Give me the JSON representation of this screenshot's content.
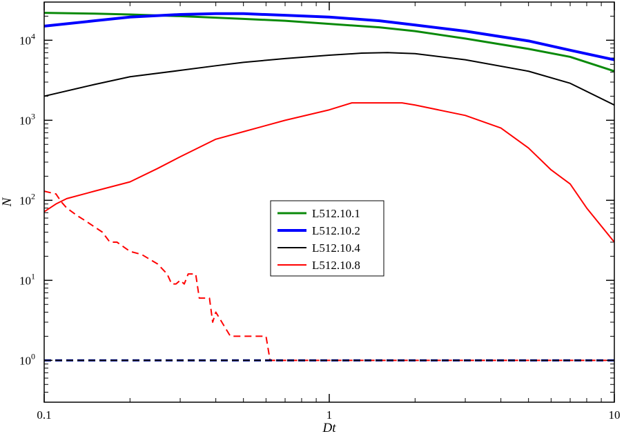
{
  "chart_data": {
    "type": "line",
    "xlabel": "Dt",
    "ylabel": "N",
    "xscale": "log",
    "yscale": "log",
    "xlim": [
      0.1,
      10
    ],
    "ylim": [
      0.3,
      30000
    ],
    "grid": false,
    "legend_position": "center",
    "x_tick_labels": [
      "0.1",
      "1",
      "10"
    ],
    "y_tick_labels": [
      {
        "base": "10",
        "exp": "0",
        "value": 1
      },
      {
        "base": "10",
        "exp": "1",
        "value": 10
      },
      {
        "base": "10",
        "exp": "2",
        "value": 100
      },
      {
        "base": "10",
        "exp": "3",
        "value": 1000
      },
      {
        "base": "10",
        "exp": "4",
        "value": 10000
      }
    ],
    "series": [
      {
        "name": "L512.10.1",
        "color": "#0a8a0a",
        "width": 3,
        "style": "solid",
        "x": [
          0.1,
          0.15,
          0.2,
          0.3,
          0.5,
          0.7,
          1.0,
          1.5,
          2.0,
          3.0,
          5.0,
          7.0,
          10.0
        ],
        "y": [
          22000,
          21500,
          21000,
          20000,
          18500,
          17500,
          16000,
          14500,
          13000,
          10500,
          7800,
          6200,
          4100
        ]
      },
      {
        "name": "L512.10.2",
        "color": "#0000ff",
        "width": 4,
        "style": "solid",
        "x": [
          0.1,
          0.15,
          0.2,
          0.3,
          0.4,
          0.5,
          0.7,
          1.0,
          1.5,
          2.0,
          3.0,
          5.0,
          7.0,
          10.0
        ],
        "y": [
          15000,
          17500,
          19500,
          21000,
          21500,
          21500,
          20500,
          19500,
          17500,
          15500,
          13000,
          9800,
          7500,
          5700
        ]
      },
      {
        "name": "L512.10.4",
        "color": "#000000",
        "width": 2,
        "style": "solid",
        "x": [
          0.1,
          0.15,
          0.2,
          0.3,
          0.4,
          0.5,
          0.7,
          1.0,
          1.3,
          1.6,
          2.0,
          3.0,
          5.0,
          7.0,
          10.0
        ],
        "y": [
          2000,
          2800,
          3500,
          4200,
          4800,
          5300,
          5900,
          6500,
          6900,
          7000,
          6800,
          5700,
          4100,
          2900,
          1550
        ]
      },
      {
        "name": "L512.10.8",
        "color": "#ff0000",
        "width": 2,
        "style": "solid",
        "x": [
          0.1,
          0.11,
          0.12,
          0.15,
          0.2,
          0.25,
          0.3,
          0.4,
          0.5,
          0.7,
          1.0,
          1.2,
          1.5,
          1.8,
          2.0,
          3.0,
          4.0,
          5.0,
          6.0,
          7.0,
          8.0,
          10.0
        ],
        "y": [
          72,
          90,
          105,
          130,
          170,
          250,
          350,
          580,
          720,
          1000,
          1350,
          1650,
          1650,
          1650,
          1550,
          1150,
          800,
          450,
          240,
          160,
          80,
          30
        ]
      },
      {
        "name": "",
        "color": "#ff0000",
        "width": 2,
        "style": "dashed",
        "x": [
          0.1,
          0.11,
          0.115,
          0.12,
          0.13,
          0.14,
          0.16,
          0.17,
          0.18,
          0.2,
          0.22,
          0.25,
          0.27,
          0.28,
          0.29,
          0.3,
          0.31,
          0.32,
          0.34,
          0.35,
          0.38,
          0.39,
          0.4,
          0.42,
          0.45,
          0.5,
          0.55,
          0.6,
          0.62,
          0.63,
          1.0,
          10.0
        ],
        "y": [
          130,
          120,
          95,
          80,
          65,
          55,
          40,
          30,
          30,
          23,
          21,
          16,
          12,
          9,
          9,
          10,
          9,
          12,
          12,
          6,
          6,
          3,
          4,
          3,
          2,
          2,
          2,
          2,
          1,
          1,
          1,
          1
        ]
      },
      {
        "name": "",
        "color": "#0a8a0a",
        "width": 3,
        "style": "dashed",
        "x": [
          0.1,
          10.0
        ],
        "y": [
          1,
          1
        ]
      },
      {
        "name": "",
        "color": "#0000ff",
        "width": 3,
        "style": "dashed",
        "x": [
          0.1,
          10.0
        ],
        "y": [
          1,
          1
        ]
      },
      {
        "name": "",
        "color": "#000000",
        "width": 2,
        "style": "dashed",
        "x": [
          0.1,
          10.0
        ],
        "y": [
          1,
          1
        ]
      }
    ],
    "legend": [
      {
        "label": "L512.10.1",
        "color": "#0a8a0a",
        "width": 3
      },
      {
        "label": "L512.10.2",
        "color": "#0000ff",
        "width": 4
      },
      {
        "label": "L512.10.4",
        "color": "#000000",
        "width": 2
      },
      {
        "label": "L512.10.8",
        "color": "#ff0000",
        "width": 2
      }
    ]
  }
}
